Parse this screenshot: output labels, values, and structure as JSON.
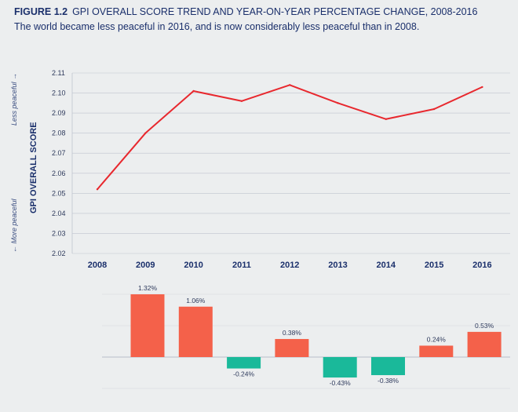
{
  "header": {
    "figure_label": "FIGURE 1.2",
    "title": "GPI OVERALL SCORE TREND AND YEAR-ON-YEAR PERCENTAGE CHANGE, 2008-2016",
    "subtitle": "The world became less peaceful in 2016, and is now considerably less peaceful than in 2008."
  },
  "side_labels": {
    "less": "Less peaceful →",
    "more": "← More peaceful"
  },
  "colors": {
    "line": "#e8282e",
    "positive": "#f4614a",
    "negative": "#1ab99a",
    "axis_text": "#1a2f6b",
    "grid": "#bfc4cf"
  },
  "chart_data": [
    {
      "type": "line",
      "title": "",
      "xlabel": "",
      "ylabel": "GPI OVERALL SCORE",
      "categories": [
        "2008",
        "2009",
        "2010",
        "2011",
        "2012",
        "2013",
        "2014",
        "2015",
        "2016"
      ],
      "values": [
        2.052,
        2.08,
        2.101,
        2.096,
        2.104,
        2.095,
        2.087,
        2.092,
        2.103
      ],
      "ylim": [
        2.02,
        2.11
      ],
      "yticks": [
        "2.02",
        "2.03",
        "2.04",
        "2.05",
        "2.06",
        "2.07",
        "2.08",
        "2.09",
        "2.10",
        "2.11"
      ],
      "grid": true
    },
    {
      "type": "bar",
      "title": "",
      "categories": [
        "2009",
        "2010",
        "2011",
        "2012",
        "2013",
        "2014",
        "2015",
        "2016"
      ],
      "values": [
        1.32,
        1.06,
        -0.24,
        0.38,
        -0.43,
        -0.38,
        0.24,
        0.53
      ],
      "labels": [
        "1.32%",
        "1.06%",
        "-0.24%",
        "0.38%",
        "-0.43%",
        "-0.38%",
        "0.24%",
        "0.53%"
      ],
      "unit": "%"
    }
  ]
}
